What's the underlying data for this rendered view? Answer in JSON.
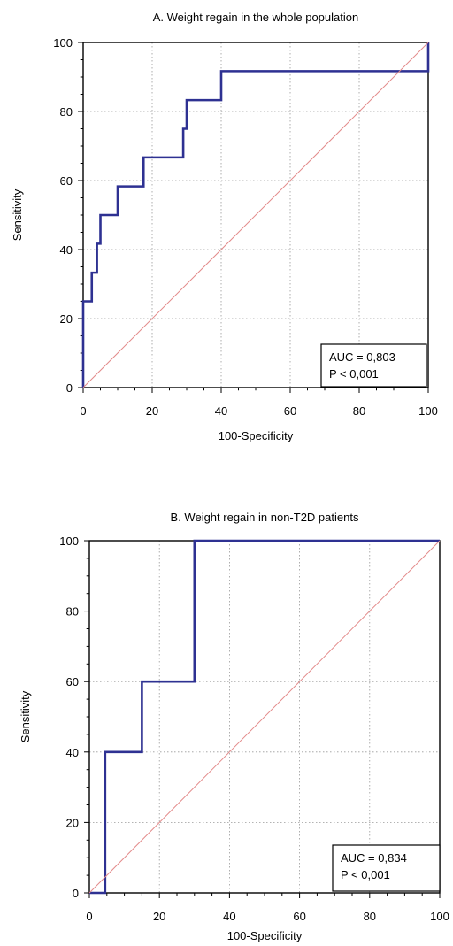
{
  "chart_data": [
    {
      "type": "line",
      "title": "A. Weight regain in the whole population",
      "xlabel": "100-Specificity",
      "ylabel": "Sensitivity",
      "xlim": [
        0,
        100
      ],
      "ylim": [
        0,
        100
      ],
      "xticks": [
        0,
        20,
        40,
        60,
        80,
        100
      ],
      "yticks": [
        0,
        20,
        40,
        60,
        80,
        100
      ],
      "grid": true,
      "series": [
        {
          "color": "#2e3192",
          "x": [
            0,
            0,
            2.5,
            2.5,
            4,
            4,
            5,
            5,
            10,
            10,
            17.5,
            17.5,
            29,
            29,
            30,
            30,
            40,
            40,
            100,
            100
          ],
          "y": [
            0,
            25,
            25,
            33.3,
            33.3,
            41.7,
            41.7,
            50,
            50,
            58.3,
            58.3,
            66.7,
            66.7,
            75,
            75,
            83.3,
            83.3,
            91.7,
            91.7,
            100
          ]
        },
        {
          "color": "#e38b8b",
          "x": [
            0,
            100
          ],
          "y": [
            0,
            100
          ]
        }
      ],
      "annotation": {
        "auc": "AUC = 0,803",
        "p": "P < 0,001",
        "position": "bottom-right"
      }
    },
    {
      "type": "line",
      "title": "B. Weight regain in non-T2D patients",
      "xlabel": "100-Specificity",
      "ylabel": "Sensitivity",
      "xlim": [
        0,
        100
      ],
      "ylim": [
        0,
        100
      ],
      "xticks": [
        0,
        20,
        40,
        60,
        80,
        100
      ],
      "yticks": [
        0,
        20,
        40,
        60,
        80,
        100
      ],
      "grid": true,
      "series": [
        {
          "color": "#2e3192",
          "x": [
            0,
            4.5,
            4.5,
            15,
            15,
            30,
            30,
            100
          ],
          "y": [
            0,
            0,
            40,
            40,
            60,
            60,
            100,
            100
          ]
        },
        {
          "color": "#e38b8b",
          "x": [
            0,
            100
          ],
          "y": [
            0,
            100
          ]
        }
      ],
      "annotation": {
        "auc": "AUC = 0,834",
        "p": "P < 0,001",
        "position": "bottom-right"
      }
    }
  ]
}
